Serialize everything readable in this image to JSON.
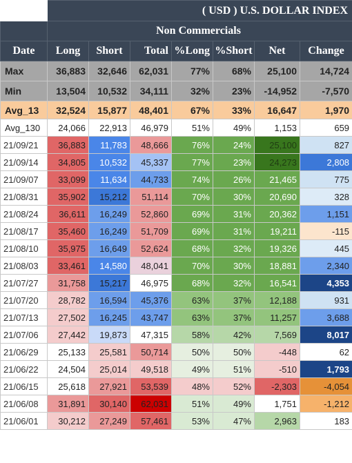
{
  "title": "( USD ) U.S. DOLLAR INDEX",
  "group_label": "Non Commercials",
  "columns": [
    "Date",
    "Long",
    "Short",
    "Total",
    "%Long",
    "%Short",
    "Net",
    "Change"
  ],
  "summary": [
    {
      "label": "Max",
      "cells": [
        "36,883",
        "32,646",
        "62,031",
        "77%",
        "68%",
        "25,100",
        "14,724"
      ]
    },
    {
      "label": "Min",
      "cells": [
        "13,504",
        "10,532",
        "34,111",
        "32%",
        "23%",
        "-14,952",
        "-7,570"
      ]
    },
    {
      "label": "Avg_13",
      "cells": [
        "32,524",
        "15,877",
        "48,401",
        "67%",
        "33%",
        "16,647",
        "1,970"
      ]
    },
    {
      "label": "Avg_130",
      "cells": [
        "24,066",
        "22,913",
        "46,979",
        "51%",
        "49%",
        "1,153",
        "659"
      ]
    }
  ],
  "rows": [
    {
      "label": "21/09/21",
      "cells": [
        "36,883",
        "11,783",
        "48,666",
        "76%",
        "24%",
        "25,100",
        "827"
      ],
      "bg": [
        "#e06666",
        "#4a86e8",
        "#ea9999",
        "#6aa84f",
        "#6aa84f",
        "#38761d",
        "#cfe2f3"
      ],
      "fg": [
        "#222222",
        "#ffffff",
        "#222222",
        "#ffffff",
        "#ffffff",
        "#1f3d12",
        "#222222"
      ],
      "bold": [
        false,
        false,
        false,
        false,
        false,
        false,
        false
      ]
    },
    {
      "label": "21/09/14",
      "cells": [
        "34,805",
        "10,532",
        "45,337",
        "77%",
        "23%",
        "24,273",
        "2,808"
      ],
      "bg": [
        "#e06666",
        "#4a86e8",
        "#a4c2f4",
        "#6aa84f",
        "#6aa84f",
        "#38761d",
        "#3c78d8"
      ],
      "fg": [
        "#222222",
        "#ffffff",
        "#222222",
        "#ffffff",
        "#ffffff",
        "#1f3d12",
        "#ffffff"
      ],
      "bold": [
        false,
        false,
        false,
        false,
        false,
        false,
        false
      ]
    },
    {
      "label": "21/09/07",
      "cells": [
        "33,099",
        "11,634",
        "44,733",
        "74%",
        "26%",
        "21,465",
        "775"
      ],
      "bg": [
        "#e06666",
        "#4a86e8",
        "#6d9eeb",
        "#6aa84f",
        "#6aa84f",
        "#6aa84f",
        "#cfe2f3"
      ],
      "fg": [
        "#222222",
        "#ffffff",
        "#222222",
        "#ffffff",
        "#ffffff",
        "#ffffff",
        "#222222"
      ],
      "bold": [
        false,
        false,
        false,
        false,
        false,
        false,
        false
      ]
    },
    {
      "label": "21/08/31",
      "cells": [
        "35,902",
        "15,212",
        "51,114",
        "70%",
        "30%",
        "20,690",
        "328"
      ],
      "bg": [
        "#e06666",
        "#3c78d8",
        "#ea9999",
        "#6aa84f",
        "#6aa84f",
        "#6aa84f",
        "#ddebf7"
      ],
      "fg": [
        "#222222",
        "#222222",
        "#222222",
        "#ffffff",
        "#ffffff",
        "#ffffff",
        "#222222"
      ],
      "bold": [
        false,
        false,
        false,
        false,
        false,
        false,
        false
      ]
    },
    {
      "label": "21/08/24",
      "cells": [
        "36,611",
        "16,249",
        "52,860",
        "69%",
        "31%",
        "20,362",
        "1,151"
      ],
      "bg": [
        "#e06666",
        "#6d9eeb",
        "#ea9999",
        "#6aa84f",
        "#6aa84f",
        "#6aa84f",
        "#6d9eeb"
      ],
      "fg": [
        "#222222",
        "#222222",
        "#222222",
        "#ffffff",
        "#ffffff",
        "#ffffff",
        "#222222"
      ],
      "bold": [
        false,
        false,
        false,
        false,
        false,
        false,
        false
      ]
    },
    {
      "label": "21/08/17",
      "cells": [
        "35,460",
        "16,249",
        "51,709",
        "69%",
        "31%",
        "19,211",
        "-115"
      ],
      "bg": [
        "#e06666",
        "#6d9eeb",
        "#ea9999",
        "#6aa84f",
        "#6aa84f",
        "#6aa84f",
        "#fce5cd"
      ],
      "fg": [
        "#222222",
        "#222222",
        "#222222",
        "#ffffff",
        "#ffffff",
        "#ffffff",
        "#222222"
      ],
      "bold": [
        false,
        false,
        false,
        false,
        false,
        false,
        false
      ]
    },
    {
      "label": "21/08/10",
      "cells": [
        "35,975",
        "16,649",
        "52,624",
        "68%",
        "32%",
        "19,326",
        "445"
      ],
      "bg": [
        "#e06666",
        "#6d9eeb",
        "#ea9999",
        "#6aa84f",
        "#6aa84f",
        "#6aa84f",
        "#ddebf7"
      ],
      "fg": [
        "#222222",
        "#222222",
        "#222222",
        "#ffffff",
        "#ffffff",
        "#ffffff",
        "#222222"
      ],
      "bold": [
        false,
        false,
        false,
        false,
        false,
        false,
        false
      ]
    },
    {
      "label": "21/08/03",
      "cells": [
        "33,461",
        "14,580",
        "48,041",
        "70%",
        "30%",
        "18,881",
        "2,340"
      ],
      "bg": [
        "#e06666",
        "#4a86e8",
        "#ead1dc",
        "#6aa84f",
        "#6aa84f",
        "#6aa84f",
        "#6d9eeb"
      ],
      "fg": [
        "#222222",
        "#ffffff",
        "#222222",
        "#ffffff",
        "#ffffff",
        "#ffffff",
        "#222222"
      ],
      "bold": [
        false,
        false,
        false,
        false,
        false,
        false,
        false
      ]
    },
    {
      "label": "21/07/27",
      "cells": [
        "31,758",
        "15,217",
        "46,975",
        "68%",
        "32%",
        "16,541",
        "4,353"
      ],
      "bg": [
        "#ea9999",
        "#3c78d8",
        "#ffffff",
        "#6aa84f",
        "#6aa84f",
        "#6aa84f",
        "#1c4587"
      ],
      "fg": [
        "#222222",
        "#222222",
        "#222222",
        "#ffffff",
        "#ffffff",
        "#ffffff",
        "#ffffff"
      ],
      "bold": [
        false,
        false,
        false,
        false,
        false,
        false,
        true
      ]
    },
    {
      "label": "21/07/20",
      "cells": [
        "28,782",
        "16,594",
        "45,376",
        "63%",
        "37%",
        "12,188",
        "931"
      ],
      "bg": [
        "#f4cccc",
        "#6d9eeb",
        "#6d9eeb",
        "#93c47d",
        "#93c47d",
        "#93c47d",
        "#cfe2f3"
      ],
      "fg": [
        "#222222",
        "#222222",
        "#222222",
        "#222222",
        "#222222",
        "#222222",
        "#222222"
      ],
      "bold": [
        false,
        false,
        false,
        false,
        false,
        false,
        false
      ]
    },
    {
      "label": "21/07/13",
      "cells": [
        "27,502",
        "16,245",
        "43,747",
        "63%",
        "37%",
        "11,257",
        "3,688"
      ],
      "bg": [
        "#f4cccc",
        "#6d9eeb",
        "#6d9eeb",
        "#93c47d",
        "#93c47d",
        "#93c47d",
        "#6d9eeb"
      ],
      "fg": [
        "#222222",
        "#222222",
        "#222222",
        "#222222",
        "#222222",
        "#222222",
        "#222222"
      ],
      "bold": [
        false,
        false,
        false,
        false,
        false,
        false,
        false
      ]
    },
    {
      "label": "21/07/06",
      "cells": [
        "27,442",
        "19,873",
        "47,315",
        "58%",
        "42%",
        "7,569",
        "8,017"
      ],
      "bg": [
        "#f4cccc",
        "#c9daf8",
        "#ffffff",
        "#b6d7a8",
        "#b6d7a8",
        "#b6d7a8",
        "#1c4587"
      ],
      "fg": [
        "#222222",
        "#222222",
        "#222222",
        "#222222",
        "#222222",
        "#222222",
        "#ffffff"
      ],
      "bold": [
        false,
        false,
        false,
        false,
        false,
        false,
        true
      ]
    },
    {
      "label": "21/06/29",
      "cells": [
        "25,133",
        "25,581",
        "50,714",
        "50%",
        "50%",
        "-448",
        "62"
      ],
      "bg": [
        "#ffffff",
        "#f4cccc",
        "#ea9999",
        "#e6efe0",
        "#e6efe0",
        "#f4cccc",
        "#ffffff"
      ],
      "fg": [
        "#222222",
        "#222222",
        "#222222",
        "#222222",
        "#222222",
        "#222222",
        "#222222"
      ],
      "bold": [
        false,
        false,
        false,
        false,
        false,
        false,
        false
      ]
    },
    {
      "label": "21/06/22",
      "cells": [
        "24,504",
        "25,014",
        "49,518",
        "49%",
        "51%",
        "-510",
        "1,793"
      ],
      "bg": [
        "#ffffff",
        "#f4cccc",
        "#f4cccc",
        "#e6efe0",
        "#e6efe0",
        "#f4cccc",
        "#1c4587"
      ],
      "fg": [
        "#222222",
        "#222222",
        "#222222",
        "#222222",
        "#222222",
        "#222222",
        "#ffffff"
      ],
      "bold": [
        false,
        false,
        false,
        false,
        false,
        false,
        true
      ]
    },
    {
      "label": "21/06/15",
      "cells": [
        "25,618",
        "27,921",
        "53,539",
        "48%",
        "52%",
        "-2,303",
        "-4,054"
      ],
      "bg": [
        "#ffffff",
        "#ea9999",
        "#e06666",
        "#f4cccc",
        "#f4cccc",
        "#e06666",
        "#e69138"
      ],
      "fg": [
        "#222222",
        "#222222",
        "#222222",
        "#222222",
        "#222222",
        "#222222",
        "#222222"
      ],
      "bold": [
        false,
        false,
        false,
        false,
        false,
        false,
        false
      ]
    },
    {
      "label": "21/06/08",
      "cells": [
        "31,891",
        "30,140",
        "62,031",
        "51%",
        "49%",
        "1,751",
        "-1,212"
      ],
      "bg": [
        "#ea9999",
        "#e06666",
        "#cc0000",
        "#d9ead3",
        "#d9ead3",
        "#ffffff",
        "#f6b26b"
      ],
      "fg": [
        "#222222",
        "#222222",
        "#222222",
        "#222222",
        "#222222",
        "#222222",
        "#222222"
      ],
      "bold": [
        false,
        false,
        false,
        false,
        false,
        false,
        false
      ]
    },
    {
      "label": "21/06/01",
      "cells": [
        "30,212",
        "27,249",
        "57,461",
        "53%",
        "47%",
        "2,963",
        "183"
      ],
      "bg": [
        "#f4cccc",
        "#ea9999",
        "#e06666",
        "#d9ead3",
        "#d9ead3",
        "#b6d7a8",
        "#ffffff"
      ],
      "fg": [
        "#222222",
        "#222222",
        "#222222",
        "#222222",
        "#222222",
        "#222222",
        "#222222"
      ],
      "bold": [
        false,
        false,
        false,
        false,
        false,
        false,
        false
      ]
    }
  ]
}
